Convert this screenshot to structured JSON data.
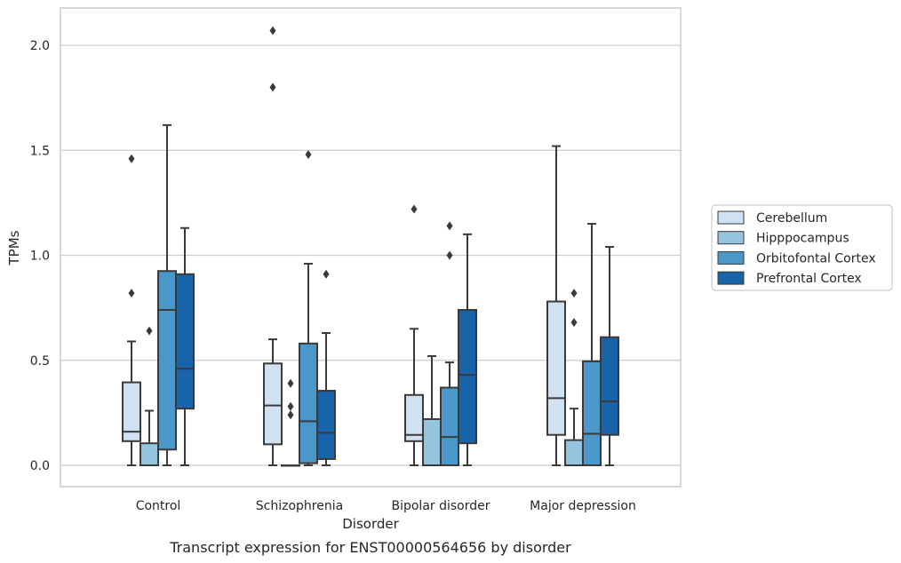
{
  "chart_data": {
    "type": "box",
    "categories": [
      "Control",
      "Schizophrenia",
      "Bipolar disorder",
      "Major depression"
    ],
    "xlabel": "Disorder",
    "ylabel": "TPMs",
    "ylim": [
      -0.1,
      2.18
    ],
    "yticks": [
      0.0,
      0.5,
      1.0,
      1.5,
      2.0
    ],
    "ytick_labels": [
      "0.0",
      "0.5",
      "1.0",
      "1.5",
      "2.0"
    ],
    "grid": "horizontal",
    "legend_position": "right",
    "caption": "Transcript expression for ENST00000564656 by disorder",
    "series": [
      {
        "name": "Cerebellum",
        "color": "#d0e1f2",
        "boxes": [
          {
            "whislo": 0.0,
            "q1": 0.115,
            "med": 0.16,
            "q3": 0.395,
            "whishi": 0.59,
            "fliers": [
              0.82,
              1.46
            ]
          },
          {
            "whislo": 0.0,
            "q1": 0.1,
            "med": 0.285,
            "q3": 0.485,
            "whishi": 0.6,
            "fliers": [
              1.8,
              2.07
            ]
          },
          {
            "whislo": 0.0,
            "q1": 0.115,
            "med": 0.145,
            "q3": 0.335,
            "whishi": 0.65,
            "fliers": [
              1.22
            ]
          },
          {
            "whislo": 0.0,
            "q1": 0.145,
            "med": 0.32,
            "q3": 0.78,
            "whishi": 1.52,
            "fliers": []
          }
        ]
      },
      {
        "name": "Hipppocampus",
        "color": "#94c4df",
        "boxes": [
          {
            "whislo": 0.0,
            "q1": 0.0,
            "med": 0.0,
            "q3": 0.105,
            "whishi": 0.26,
            "fliers": [
              0.64
            ]
          },
          {
            "whislo": 0.0,
            "q1": 0.0,
            "med": 0.0,
            "q3": 0.0,
            "whishi": 0.0,
            "fliers": [
              0.24,
              0.28,
              0.39
            ]
          },
          {
            "whislo": 0.0,
            "q1": 0.0,
            "med": 0.0,
            "q3": 0.22,
            "whishi": 0.52,
            "fliers": []
          },
          {
            "whislo": 0.0,
            "q1": 0.0,
            "med": 0.0,
            "q3": 0.12,
            "whishi": 0.27,
            "fliers": [
              0.68,
              0.82
            ]
          }
        ]
      },
      {
        "name": "Orbitofontal Cortex",
        "color": "#4a98c9",
        "boxes": [
          {
            "whislo": 0.0,
            "q1": 0.075,
            "med": 0.74,
            "q3": 0.925,
            "whishi": 1.62,
            "fliers": []
          },
          {
            "whislo": 0.0,
            "q1": 0.01,
            "med": 0.21,
            "q3": 0.58,
            "whishi": 0.96,
            "fliers": [
              1.48
            ]
          },
          {
            "whislo": 0.0,
            "q1": 0.0,
            "med": 0.135,
            "q3": 0.37,
            "whishi": 0.49,
            "fliers": [
              1.0,
              1.14
            ]
          },
          {
            "whislo": 0.0,
            "q1": 0.0,
            "med": 0.15,
            "q3": 0.495,
            "whishi": 1.15,
            "fliers": []
          }
        ]
      },
      {
        "name": "Prefrontal Cortex",
        "color": "#1764ab",
        "boxes": [
          {
            "whislo": 0.0,
            "q1": 0.27,
            "med": 0.46,
            "q3": 0.91,
            "whishi": 1.13,
            "fliers": []
          },
          {
            "whislo": 0.0,
            "q1": 0.03,
            "med": 0.155,
            "q3": 0.355,
            "whishi": 0.63,
            "fliers": [
              0.91
            ]
          },
          {
            "whislo": 0.0,
            "q1": 0.105,
            "med": 0.43,
            "q3": 0.74,
            "whishi": 1.1,
            "fliers": []
          },
          {
            "whislo": 0.0,
            "q1": 0.145,
            "med": 0.305,
            "q3": 0.61,
            "whishi": 1.04,
            "fliers": []
          }
        ]
      }
    ]
  }
}
